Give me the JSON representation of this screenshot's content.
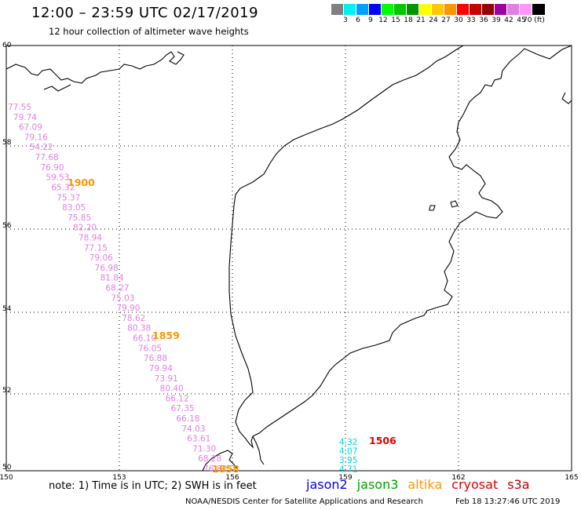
{
  "header": {
    "title": "12:00 – 23:59 UTC 02/17/2019",
    "subtitle": "12 hour collection of altimeter wave heights"
  },
  "colorbar": {
    "swatches": [
      "#808080",
      "#00f0f0",
      "#00a0ff",
      "#0000ff",
      "#00ff00",
      "#00c800",
      "#009600",
      "#ffff00",
      "#ffc800",
      "#ff9600",
      "#ff0000",
      "#c80000",
      "#960000",
      "#a000a0",
      "#e080e0",
      "#ff96ff",
      "#000000"
    ],
    "labels": [
      "3",
      "6",
      "9",
      "12",
      "15",
      "18",
      "21",
      "24",
      "27",
      "30",
      "33",
      "36",
      "39",
      "42",
      "45",
      "70 (ft)"
    ]
  },
  "axes": {
    "lon_ticks": [
      "150",
      "153",
      "156",
      "159",
      "162",
      "165"
    ],
    "lat_ticks": [
      "60",
      "58",
      "56",
      "54",
      "52",
      "50"
    ]
  },
  "tracks": {
    "track_a": {
      "color": "#e080e0",
      "values": [
        "77.55",
        "79.74",
        "67.09",
        "79.16",
        "54.22",
        "77.68",
        "76.90",
        "59.53",
        "65.32",
        "75.37",
        "83.05",
        "75.85",
        "82.20",
        "78.94",
        "77.15",
        "79.06",
        "76.98",
        "81.84",
        "68.27",
        "75.03",
        "79.90",
        "78.62",
        "80.38",
        "66.10",
        "76.05",
        "76.88",
        "79.94",
        "73.91",
        "80.40",
        "66.12",
        "67.35",
        "66.18",
        "74.03",
        "63.61",
        "71.30",
        "68.28",
        "76.82"
      ]
    },
    "track_b": {
      "color": "#00d8d8",
      "values": [
        "4.32",
        "4.07",
        "3.95",
        "4.71"
      ]
    }
  },
  "time_labels": [
    {
      "text": "1900",
      "color": "#ff9600"
    },
    {
      "text": "1859",
      "color": "#ff9600"
    },
    {
      "text": "1858",
      "color": "#ff9600"
    },
    {
      "text": "1506",
      "color": "#e00000"
    }
  ],
  "footer": {
    "note": "note: 1) Time is in UTC; 2) SWH is in feet",
    "satellites": [
      {
        "name": "jason2",
        "color": "#0000ff"
      },
      {
        "name": "jason3",
        "color": "#00a000"
      },
      {
        "name": "altika",
        "color": "#ff9600"
      },
      {
        "name": "cryosat",
        "color": "#e00000"
      },
      {
        "name": "s3a",
        "color": "#c00000"
      }
    ],
    "credit": "NOAA/NESDIS Center for Satellite Applications and Research",
    "timestamp": "Feb 18 13:27:46 UTC 2019"
  }
}
